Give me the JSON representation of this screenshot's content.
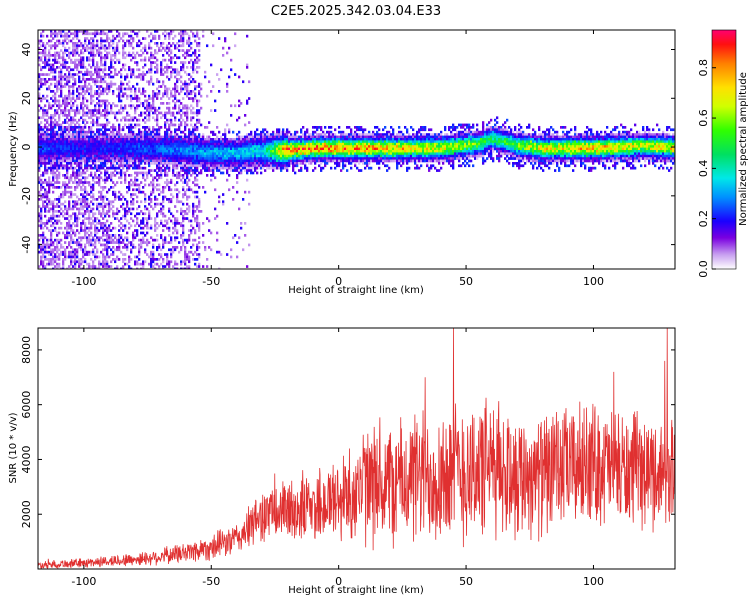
{
  "title": "C2E5.2025.342.03.04.E33",
  "chart_data": [
    {
      "type": "heatmap",
      "title": "C2E5.2025.342.03.04.E33",
      "xlabel": "Height of straight line (km)",
      "ylabel": "Frequency (Hz)",
      "xlim": [
        -118,
        132
      ],
      "ylim": [
        -50,
        48
      ],
      "xticks": [
        -100,
        -50,
        0,
        50,
        100
      ],
      "yticks": [
        -40,
        -20,
        0,
        20,
        40
      ],
      "colorbar": {
        "label": "Normalized spectral amplitude",
        "range": [
          0,
          0.95
        ],
        "ticks": [
          0.0,
          0.2,
          0.4,
          0.6,
          0.8
        ]
      },
      "ridge": {
        "description": "narrow band near 0 Hz",
        "x": [
          -118,
          -100,
          -80,
          -60,
          -50,
          -40,
          -30,
          -20,
          -10,
          0,
          20,
          40,
          55,
          60,
          70,
          80,
          100,
          120,
          132
        ],
        "center_hz": [
          0,
          0,
          0,
          -1,
          -2,
          -2,
          -1,
          -1,
          0,
          0,
          0,
          0,
          2,
          4,
          1,
          0,
          0,
          1,
          0
        ],
        "amplitude": [
          0.25,
          0.2,
          0.25,
          0.3,
          0.35,
          0.35,
          0.4,
          0.9,
          0.85,
          0.85,
          0.8,
          0.7,
          0.6,
          0.5,
          0.6,
          0.75,
          0.8,
          0.7,
          0.75
        ]
      }
    },
    {
      "type": "line",
      "title": "",
      "xlabel": "Height of straight line (km)",
      "ylabel": "SNR (10 * v/v)",
      "xlim": [
        -118,
        132
      ],
      "ylim": [
        0,
        8800
      ],
      "xticks": [
        -100,
        -50,
        0,
        50,
        100
      ],
      "yticks": [
        2000,
        4000,
        6000,
        8000
      ],
      "series": [
        {
          "name": "SNR",
          "color": "#e03030",
          "x": [
            -118,
            -100,
            -80,
            -70,
            -60,
            -50,
            -40,
            -35,
            -30,
            -20,
            -10,
            0,
            5,
            10,
            20,
            30,
            40,
            50,
            60,
            70,
            80,
            90,
            100,
            110,
            120,
            132
          ],
          "mean": [
            150,
            220,
            350,
            450,
            600,
            800,
            1100,
            1500,
            2000,
            2100,
            2300,
            2500,
            2800,
            3000,
            3100,
            3300,
            3500,
            3600,
            3700,
            3500,
            3400,
            3700,
            3900,
            3600,
            3500,
            3600
          ],
          "spread": [
            150,
            180,
            250,
            300,
            400,
            500,
            600,
            800,
            1000,
            1200,
            1400,
            1600,
            1900,
            2200,
            2300,
            2500,
            2700,
            2800,
            2600,
            2400,
            2300,
            2300,
            2300,
            2200,
            2100,
            2000
          ],
          "peaks": [
            [
              45,
              8800
            ],
            [
              129,
              8800
            ],
            [
              128,
              7600
            ],
            [
              108,
              7200
            ],
            [
              34,
              7000
            ]
          ]
        }
      ]
    }
  ]
}
